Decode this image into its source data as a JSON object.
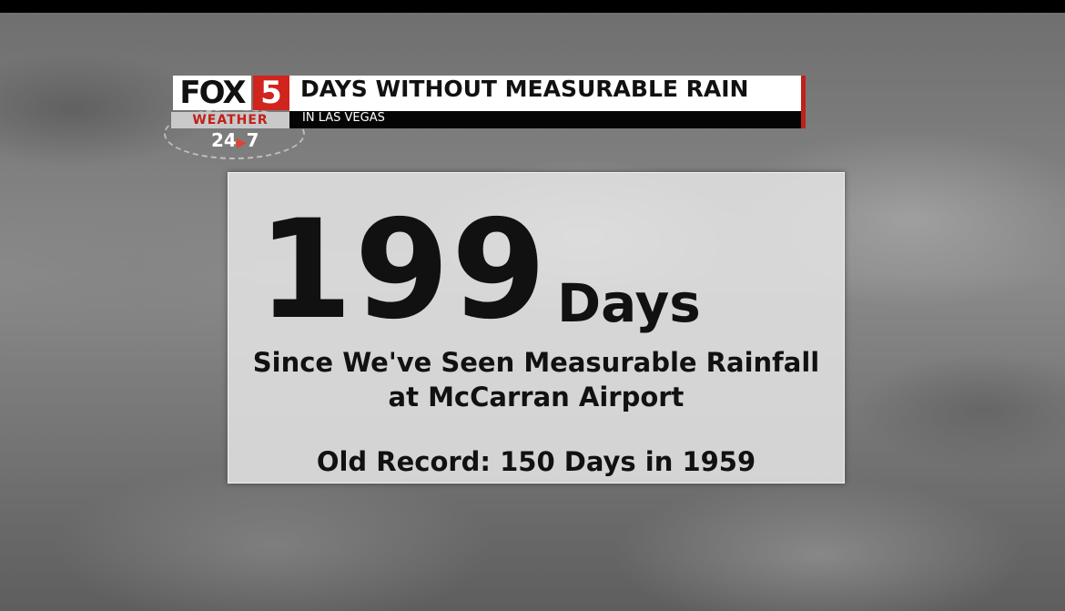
{
  "logo": {
    "brand": "FOX",
    "channel": "5",
    "service": "WEATHER",
    "hours": "24",
    "days": "7"
  },
  "header": {
    "title": "DAYS WITHOUT MEASURABLE RAIN",
    "subtitle": "IN LAS VEGAS"
  },
  "card": {
    "number": "199",
    "unit": "Days",
    "lines": [
      "Since We've Seen Measurable Rainfall",
      "at McCarran Airport"
    ],
    "record": "Old Record: 150 Days in 1959"
  }
}
